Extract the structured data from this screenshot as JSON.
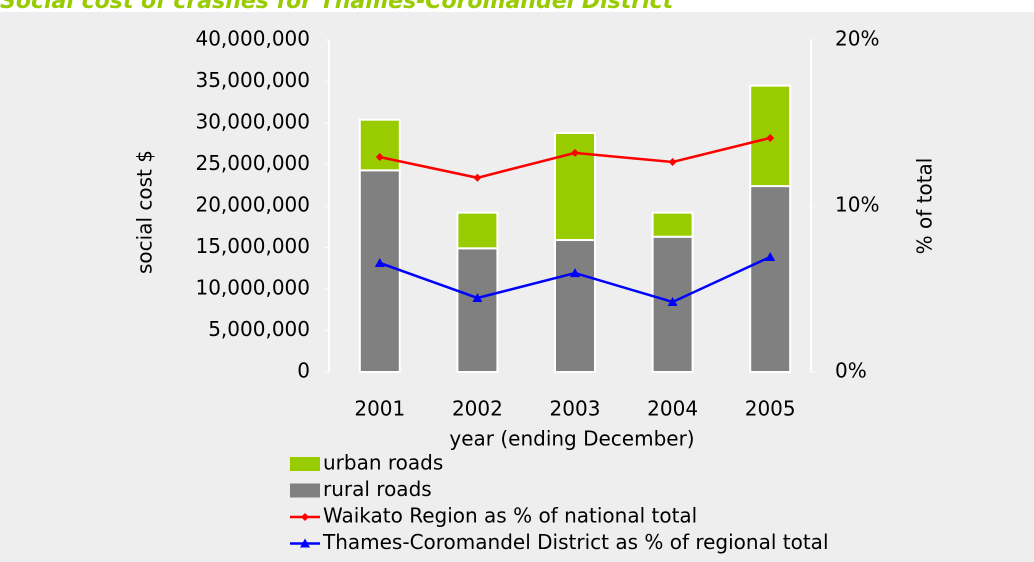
{
  "chart_data": {
    "type": "bar",
    "title": "Social cost of crashes for Thames-Coromandel District",
    "x_label": "year (ending December)",
    "y_label": "social cost $",
    "y2_label": "% of total",
    "categories": [
      "2001",
      "2002",
      "2003",
      "2004",
      "2005"
    ],
    "series": [
      {
        "name": "urban roads",
        "type": "bar",
        "color": "#99cc00",
        "values": [
          6100000,
          4300000,
          12900000,
          2900000,
          12100000
        ]
      },
      {
        "name": "rural roads",
        "type": "bar",
        "color": "#808080",
        "values": [
          24300000,
          14900000,
          15900000,
          16300000,
          22400000
        ]
      },
      {
        "name": "Waikato Region as % of national total",
        "type": "line",
        "axis": "y2",
        "marker": "diamond",
        "color": "#ff0000",
        "values": [
          12.95,
          11.7,
          13.2,
          12.65,
          14.1
        ]
      },
      {
        "name": "Thames-Coromandel District as % of regional total",
        "type": "line",
        "axis": "y2",
        "marker": "triangle",
        "color": "#0000ff",
        "values": [
          6.57,
          4.46,
          5.96,
          4.22,
          6.93
        ]
      }
    ],
    "stacked": true,
    "ylim": [
      0,
      40000000
    ],
    "yticks": [
      {
        "value": 0,
        "label": "0"
      },
      {
        "value": 5000000,
        "label": "5,000,000"
      },
      {
        "value": 10000000,
        "label": "10,000,000"
      },
      {
        "value": 15000000,
        "label": "15,000,000"
      },
      {
        "value": 20000000,
        "label": "20,000,000"
      },
      {
        "value": 25000000,
        "label": "25,000,000"
      },
      {
        "value": 30000000,
        "label": "30,000,000"
      },
      {
        "value": 35000000,
        "label": "35,000,000"
      },
      {
        "value": 40000000,
        "label": "40,000,000"
      }
    ],
    "y2lim": [
      0,
      20
    ],
    "y2ticks": [
      {
        "value": 0,
        "label": "0%"
      },
      {
        "value": 10,
        "label": "10%"
      },
      {
        "value": 20,
        "label": "20%"
      }
    ],
    "legend": "bottom-left"
  }
}
